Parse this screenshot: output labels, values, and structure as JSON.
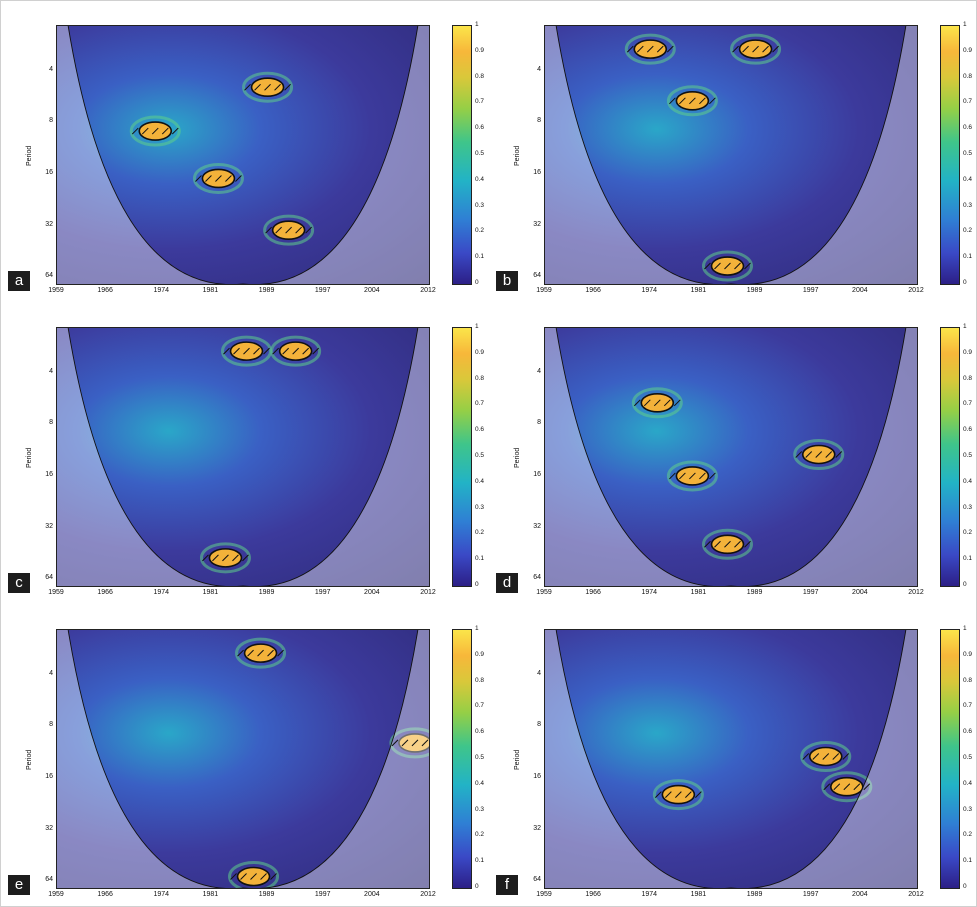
{
  "chart_data": [
    {
      "type": "heatmap",
      "panel": "a",
      "ylabel": "Period",
      "y_ticks": [
        "4",
        "8",
        "16",
        "32",
        "64"
      ],
      "x_ticks": [
        "1959",
        "1966",
        "1974",
        "1981",
        "1989",
        "1997",
        "2004",
        "2012"
      ],
      "colorbar_ticks": [
        "1",
        "0.9",
        "0.8",
        "0.7",
        "0.6",
        "0.5",
        "0.4",
        "0.3",
        "0.2",
        "0.1",
        "0"
      ],
      "colorbar_range": [
        0,
        1
      ],
      "high_power_regions": [
        {
          "year": 1973,
          "period": 9
        },
        {
          "year": 1982,
          "period": 17
        },
        {
          "year": 1992,
          "period": 34
        },
        {
          "year": 1989,
          "period": 5
        }
      ]
    },
    {
      "type": "heatmap",
      "panel": "b",
      "ylabel": "Period",
      "y_ticks": [
        "4",
        "8",
        "16",
        "32",
        "64"
      ],
      "x_ticks": [
        "1959",
        "1966",
        "1974",
        "1981",
        "1989",
        "1997",
        "2004",
        "2012"
      ],
      "colorbar_ticks": [
        "1",
        "0.9",
        "0.8",
        "0.7",
        "0.6",
        "0.5",
        "0.4",
        "0.3",
        "0.2",
        "0.1",
        "0"
      ],
      "colorbar_range": [
        0,
        1
      ],
      "high_power_regions": [
        {
          "year": 1974,
          "period": 3
        },
        {
          "year": 1989,
          "period": 3
        },
        {
          "year": 1985,
          "period": 55
        },
        {
          "year": 1980,
          "period": 6
        }
      ]
    },
    {
      "type": "heatmap",
      "panel": "c",
      "ylabel": "Period",
      "y_ticks": [
        "4",
        "8",
        "16",
        "32",
        "64"
      ],
      "x_ticks": [
        "1959",
        "1966",
        "1974",
        "1981",
        "1989",
        "1997",
        "2004",
        "2012"
      ],
      "colorbar_ticks": [
        "1",
        "0.9",
        "0.8",
        "0.7",
        "0.6",
        "0.5",
        "0.4",
        "0.3",
        "0.2",
        "0.1",
        "0"
      ],
      "colorbar_range": [
        0,
        1
      ],
      "high_power_regions": [
        {
          "year": 1986,
          "period": 3
        },
        {
          "year": 1993,
          "period": 3
        },
        {
          "year": 1983,
          "period": 48
        }
      ]
    },
    {
      "type": "heatmap",
      "panel": "d",
      "ylabel": "Period",
      "y_ticks": [
        "4",
        "8",
        "16",
        "32",
        "64"
      ],
      "x_ticks": [
        "1959",
        "1966",
        "1974",
        "1981",
        "1989",
        "1997",
        "2004",
        "2012"
      ],
      "colorbar_ticks": [
        "1",
        "0.9",
        "0.8",
        "0.7",
        "0.6",
        "0.5",
        "0.4",
        "0.3",
        "0.2",
        "0.1",
        "0"
      ],
      "colorbar_range": [
        0,
        1
      ],
      "high_power_regions": [
        {
          "year": 1985,
          "period": 40
        },
        {
          "year": 1980,
          "period": 16
        },
        {
          "year": 1975,
          "period": 6
        },
        {
          "year": 1998,
          "period": 12
        }
      ]
    },
    {
      "type": "heatmap",
      "panel": "e",
      "ylabel": "Period",
      "y_ticks": [
        "4",
        "8",
        "16",
        "32",
        "64"
      ],
      "x_ticks": [
        "1959",
        "1966",
        "1974",
        "1981",
        "1989",
        "1997",
        "2004",
        "2012"
      ],
      "colorbar_ticks": [
        "1",
        "0.9",
        "0.8",
        "0.7",
        "0.6",
        "0.5",
        "0.4",
        "0.3",
        "0.2",
        "0.1",
        "0"
      ],
      "colorbar_range": [
        0,
        1
      ],
      "high_power_regions": [
        {
          "year": 1987,
          "period": 60
        },
        {
          "year": 1988,
          "period": 3
        },
        {
          "year": 2010,
          "period": 10
        }
      ]
    },
    {
      "type": "heatmap",
      "panel": "f",
      "ylabel": "Period",
      "y_ticks": [
        "4",
        "8",
        "16",
        "32",
        "64"
      ],
      "x_ticks": [
        "1959",
        "1966",
        "1974",
        "1981",
        "1989",
        "1997",
        "2004",
        "2012"
      ],
      "colorbar_ticks": [
        "1",
        "0.9",
        "0.8",
        "0.7",
        "0.6",
        "0.5",
        "0.4",
        "0.3",
        "0.2",
        "0.1",
        "0"
      ],
      "colorbar_range": [
        0,
        1
      ],
      "high_power_regions": [
        {
          "year": 1978,
          "period": 20
        },
        {
          "year": 1999,
          "period": 12
        },
        {
          "year": 2002,
          "period": 18
        }
      ]
    }
  ]
}
